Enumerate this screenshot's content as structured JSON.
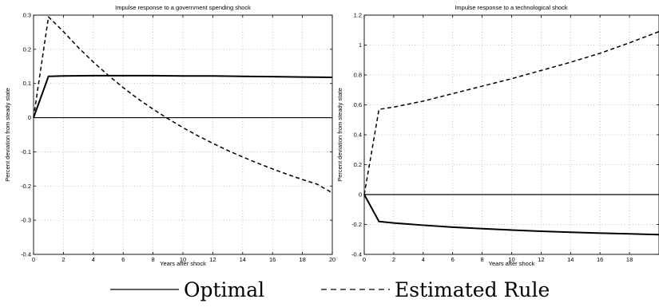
{
  "legend": {
    "entries": [
      {
        "label": "Optimal",
        "style": "solid",
        "color": "#000000"
      },
      {
        "label": "Estimated Rule",
        "style": "dashed",
        "color": "#000000"
      }
    ]
  },
  "chart_data": [
    {
      "type": "line",
      "title": "Impulse response to a government spending shock",
      "xlabel": "Years after shock",
      "ylabel": "Percent deviation from steady state",
      "xlim": [
        0,
        20
      ],
      "ylim": [
        -0.4,
        0.3
      ],
      "xticks": [
        0,
        2,
        4,
        6,
        8,
        10,
        12,
        14,
        16,
        18,
        20
      ],
      "yticks": [
        -0.4,
        -0.3,
        -0.2,
        -0.1,
        0,
        0.1,
        0.2,
        0.3
      ],
      "grid": true,
      "zero_line": true,
      "series": [
        {
          "name": "Optimal",
          "style": "solid",
          "x": [
            0,
            1,
            2,
            4,
            6,
            8,
            10,
            12,
            14,
            16,
            18,
            20
          ],
          "y": [
            0,
            0.121,
            0.122,
            0.123,
            0.123,
            0.123,
            0.122,
            0.122,
            0.121,
            0.12,
            0.119,
            0.118
          ]
        },
        {
          "name": "Estimated Rule",
          "style": "dashed",
          "x": [
            0,
            1,
            2,
            3,
            4,
            5,
            6,
            7,
            8,
            9,
            10,
            11,
            12,
            13,
            14,
            15,
            16,
            17,
            18,
            19,
            20
          ],
          "y": [
            0,
            0.295,
            0.252,
            0.205,
            0.163,
            0.124,
            0.088,
            0.055,
            0.025,
            -0.003,
            -0.029,
            -0.053,
            -0.075,
            -0.096,
            -0.115,
            -0.133,
            -0.15,
            -0.166,
            -0.181,
            -0.195,
            -0.22
          ]
        }
      ]
    },
    {
      "type": "line",
      "title": "Impulse response to a technological shock",
      "xlabel": "Years after shock",
      "ylabel": "Percent deviation from steady state",
      "xlim": [
        0,
        20
      ],
      "ylim": [
        -0.4,
        1.2
      ],
      "xticks": [
        0,
        2,
        4,
        6,
        8,
        10,
        12,
        14,
        16,
        18
      ],
      "yticks": [
        -0.4,
        -0.2,
        0,
        0.2,
        0.4,
        0.6,
        0.8,
        1,
        1.2
      ],
      "grid": true,
      "zero_line": true,
      "series": [
        {
          "name": "Optimal",
          "style": "solid",
          "x": [
            0,
            1,
            2,
            4,
            6,
            8,
            10,
            12,
            14,
            16,
            18,
            20
          ],
          "y": [
            0,
            -0.18,
            -0.19,
            -0.205,
            -0.218,
            -0.228,
            -0.237,
            -0.245,
            -0.252,
            -0.258,
            -0.263,
            -0.268
          ]
        },
        {
          "name": "Estimated Rule",
          "style": "dashed",
          "x": [
            0,
            1,
            2,
            4,
            6,
            8,
            10,
            12,
            14,
            16,
            18,
            20
          ],
          "y": [
            0,
            0.57,
            0.585,
            0.625,
            0.675,
            0.725,
            0.775,
            0.83,
            0.885,
            0.945,
            1.015,
            1.09
          ]
        }
      ]
    }
  ]
}
